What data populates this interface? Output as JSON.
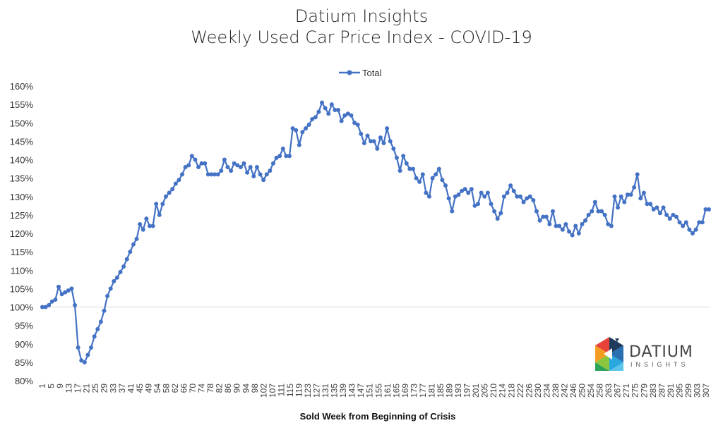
{
  "chart_data": {
    "type": "line",
    "title_line1": "Datium Insights",
    "title_line2": "Weekly Used Car Price Index - COVID-19",
    "xlabel": "Sold Week from Beginning of Crisis",
    "ylabel": "",
    "ylim": [
      0.8,
      1.6
    ],
    "y_ticks": [
      "80%",
      "85%",
      "90%",
      "95%",
      "100%",
      "105%",
      "110%",
      "115%",
      "120%",
      "125%",
      "130%",
      "135%",
      "140%",
      "145%",
      "150%",
      "155%",
      "160%"
    ],
    "reference_line": 1.0,
    "grid": false,
    "legend_position": "top-center",
    "x_tick_labels": [
      "1",
      "5",
      "9",
      "13",
      "17",
      "21",
      "25",
      "29",
      "33",
      "37",
      "41",
      "45",
      "49",
      "54",
      "58",
      "62",
      "66",
      "70",
      "74",
      "78",
      "82",
      "86",
      "90",
      "94",
      "98",
      "102",
      "107",
      "111",
      "115",
      "119",
      "123",
      "127",
      "131",
      "135",
      "139",
      "143",
      "147",
      "151",
      "155",
      "161",
      "165",
      "169",
      "173",
      "177",
      "181",
      "185",
      "189",
      "193",
      "197",
      "201",
      "205",
      "210",
      "214",
      "218",
      "222",
      "226",
      "230",
      "234",
      "238",
      "242",
      "246",
      "250",
      "254",
      "258",
      "263",
      "267",
      "271",
      "275",
      "279",
      "283",
      "287",
      "291",
      "295",
      "299",
      "303",
      "307"
    ],
    "series": [
      {
        "name": "Total",
        "color": "#4472C4",
        "values": [
          100,
          100,
          100.5,
          101.5,
          102,
          105.5,
          103.5,
          104,
          104.5,
          105,
          100.5,
          89,
          85.5,
          85,
          87,
          89,
          92,
          94,
          96,
          99,
          103,
          105,
          107,
          108,
          109.5,
          111,
          113,
          115,
          117,
          118.5,
          122.5,
          121,
          124,
          122,
          122,
          128,
          125,
          128,
          130,
          131,
          132,
          133.5,
          134.5,
          136,
          138,
          138.5,
          141,
          140,
          138,
          139,
          139,
          136,
          136,
          136,
          136,
          137,
          140,
          138,
          137,
          139,
          138.5,
          138,
          139,
          136.5,
          138,
          135.5,
          138,
          136,
          134.5,
          136,
          137,
          139,
          140.5,
          141,
          143,
          141,
          141,
          148.5,
          148,
          144,
          147.5,
          148.5,
          149.5,
          151,
          151.5,
          153,
          155.5,
          154,
          152.5,
          155,
          153.5,
          153.5,
          150.5,
          152,
          152.5,
          152,
          150,
          149.5,
          147,
          144.5,
          146.5,
          145,
          145,
          143,
          146,
          144.5,
          148.5,
          145,
          143,
          140.5,
          137,
          141,
          139,
          137.5,
          137.5,
          135,
          134,
          136,
          131,
          130,
          135,
          136,
          137.5,
          134.5,
          133,
          129.5,
          126,
          130,
          130.5,
          131.5,
          132,
          131,
          132,
          127.5,
          128,
          131,
          130,
          131,
          128,
          126,
          124,
          125.5,
          130,
          131,
          133,
          131.5,
          130,
          130,
          128.5,
          129.5,
          130,
          129,
          126,
          123.5,
          124.5,
          124.5,
          122.5,
          126,
          122,
          122,
          121,
          122.5,
          120.5,
          119.5,
          122,
          120,
          122.5,
          123.5,
          125,
          126,
          128.5,
          126,
          126,
          125,
          122.5,
          122,
          130,
          127,
          130,
          128.5,
          130.5,
          130.5,
          132.5,
          136,
          129.5,
          131,
          128,
          128,
          126.5,
          127,
          125.5,
          127,
          125,
          124,
          125,
          124.5,
          123,
          122,
          123,
          121,
          120,
          121,
          123,
          123,
          126.5,
          126.5
        ]
      }
    ]
  },
  "logo": {
    "name": "DATIUM",
    "tagline": "INSIGHTS"
  }
}
